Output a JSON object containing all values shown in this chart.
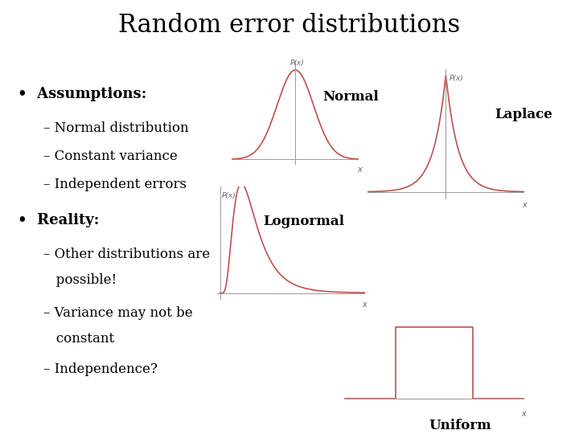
{
  "title": "Random error distributions",
  "title_fontsize": 22,
  "bg_color": "#ffffff",
  "curve_color": "#c0504d",
  "axis_color": "#999999",
  "text_color": "#000000",
  "bullet1_header": "Assumptions:",
  "bullet1_items": [
    "– Normal distribution",
    "– Constant variance",
    "– Independent errors"
  ],
  "bullet2_header": "Reality:",
  "bullet2_items_line1": "– Other distributions are",
  "bullet2_items_line2": "   possible!",
  "bullet2_items_line3": "– Variance may not be",
  "bullet2_items_line4": "   constant",
  "bullet2_items_line5": "– Independence?",
  "label_normal": "Normal",
  "label_laplace": "Laplace",
  "label_lognormal": "Lognormal",
  "label_uniform": "Uniform",
  "label_fontsize": 12,
  "body_fontsize": 12,
  "bullet_fontsize": 13
}
